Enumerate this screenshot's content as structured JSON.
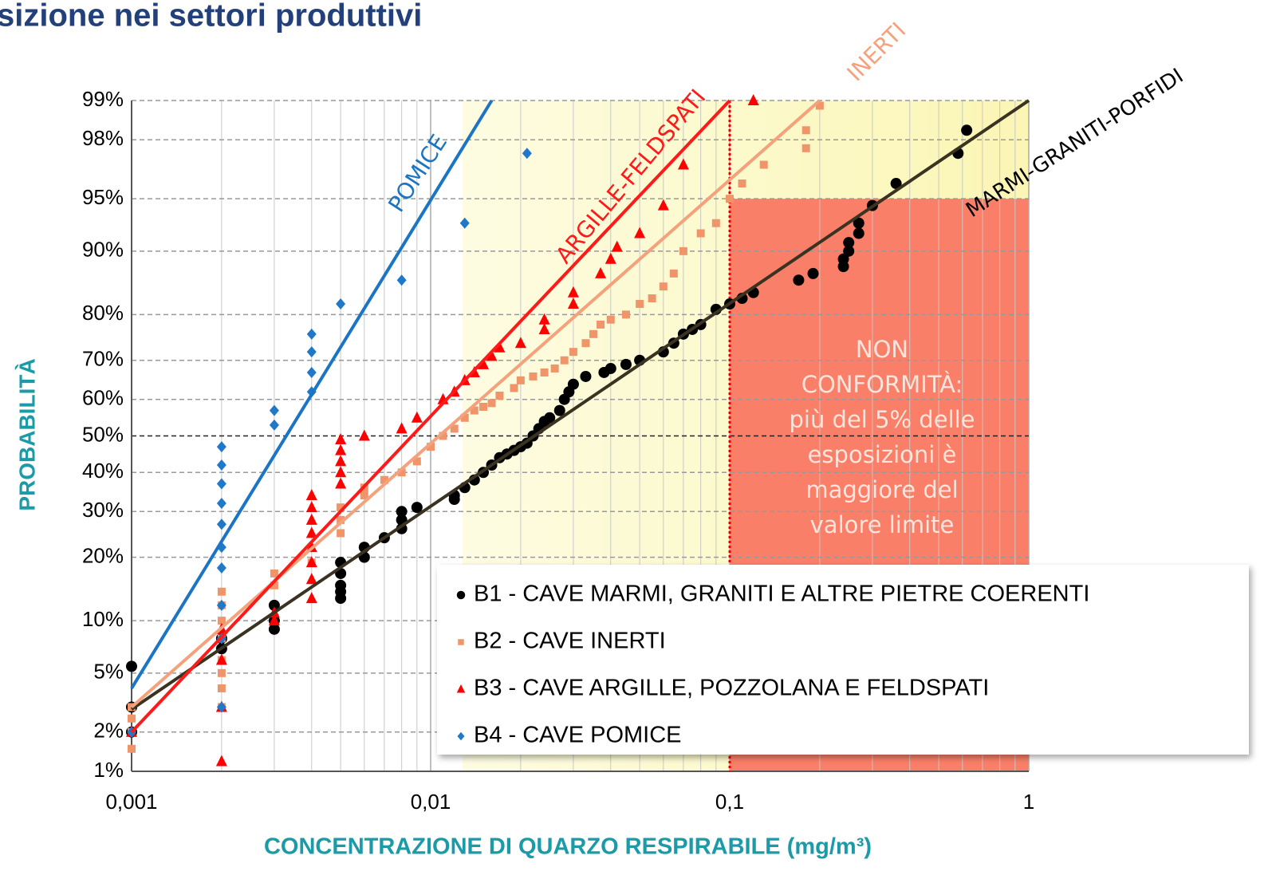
{
  "heading": "sizione nei settori produttivi",
  "chart_data": {
    "type": "scatter",
    "xlabel": "CONCENTRAZIONE DI QUARZO RESPIRABILE (mg/m³)",
    "ylabel": "PROBABILITÀ",
    "xscale": "log",
    "yscale": "probability",
    "xlim": [
      0.001,
      1
    ],
    "ylim": [
      1,
      99
    ],
    "xticks": [
      {
        "value": 0.001,
        "label": "0,001"
      },
      {
        "value": 0.01,
        "label": "0,01"
      },
      {
        "value": 0.1,
        "label": "0,1"
      },
      1
    ],
    "yticks": [
      {
        "value": 1,
        "label": "1%"
      },
      {
        "value": 2,
        "label": "2%"
      },
      {
        "value": 5,
        "label": "5%"
      },
      {
        "value": 10,
        "label": "10%"
      },
      {
        "value": 20,
        "label": "20%"
      },
      {
        "value": 30,
        "label": "30%"
      },
      {
        "value": 40,
        "label": "40%"
      },
      {
        "value": 50,
        "label": "50%"
      },
      {
        "value": 60,
        "label": "60%"
      },
      {
        "value": 70,
        "label": "70%"
      },
      {
        "value": 80,
        "label": "80%"
      },
      {
        "value": 90,
        "label": "90%"
      },
      {
        "value": 95,
        "label": "95%"
      },
      {
        "value": 98,
        "label": "98%"
      },
      {
        "value": 99,
        "label": "99%"
      }
    ],
    "grid": true,
    "legend": "lower right",
    "annotations": {
      "line_labels": [
        "POMICE",
        "ARGILLE-FELDSPATI",
        "INERTI",
        "MARMI-GRANITI-PORFIDI"
      ],
      "region": [
        "NON",
        "CONFORMITÀ:",
        "più del 5% delle",
        "esposizioni è",
        "maggiore del",
        "valore limite"
      ]
    },
    "series": [
      {
        "name": "B1 - CAVE MARMI, GRANITI E ALTRE PIETRE COERENTI",
        "color": "#000000",
        "line_color": "#3b3322",
        "marker": "circle",
        "x": [
          0.001,
          0.001,
          0.001,
          0.002,
          0.002,
          0.003,
          0.003,
          0.003,
          0.005,
          0.005,
          0.005,
          0.005,
          0.005,
          0.006,
          0.006,
          0.007,
          0.008,
          0.008,
          0.008,
          0.009,
          0.012,
          0.012,
          0.013,
          0.014,
          0.015,
          0.016,
          0.017,
          0.018,
          0.019,
          0.02,
          0.021,
          0.022,
          0.023,
          0.024,
          0.025,
          0.027,
          0.028,
          0.029,
          0.03,
          0.033,
          0.038,
          0.04,
          0.045,
          0.05,
          0.06,
          0.065,
          0.07,
          0.075,
          0.08,
          0.09,
          0.1,
          0.11,
          0.12,
          0.17,
          0.19,
          0.24,
          0.24,
          0.25,
          0.25,
          0.27,
          0.27,
          0.3,
          0.36,
          0.58,
          0.62
        ],
        "values": [
          5.5,
          3,
          2,
          7,
          8,
          12,
          10,
          9,
          19,
          17,
          15,
          14,
          13,
          22,
          20,
          24,
          26,
          28,
          30,
          31,
          34,
          33,
          36,
          38,
          40,
          42,
          44,
          45,
          46,
          47,
          48,
          50,
          52,
          54,
          55,
          57,
          60,
          62,
          64,
          66,
          67,
          68,
          69,
          70,
          72,
          74,
          76,
          77,
          78,
          81,
          82,
          83,
          84,
          86,
          87,
          88,
          89,
          90,
          91,
          92,
          93,
          94.5,
          96,
          97.5,
          98.3
        ],
        "trend_x": [
          0.001,
          1
        ],
        "trend_y": [
          2.9,
          99
        ]
      },
      {
        "name": "B2 - CAVE INERTI",
        "color": "#f0956a",
        "line_color": "#f4a27c",
        "marker": "square",
        "x": [
          0.001,
          0.001,
          0.001,
          0.001,
          0.002,
          0.002,
          0.002,
          0.002,
          0.002,
          0.002,
          0.002,
          0.002,
          0.003,
          0.003,
          0.004,
          0.005,
          0.005,
          0.005,
          0.006,
          0.006,
          0.007,
          0.008,
          0.009,
          0.01,
          0.011,
          0.012,
          0.013,
          0.014,
          0.015,
          0.016,
          0.017,
          0.019,
          0.02,
          0.022,
          0.024,
          0.026,
          0.028,
          0.03,
          0.033,
          0.035,
          0.037,
          0.04,
          0.045,
          0.05,
          0.055,
          0.06,
          0.065,
          0.07,
          0.08,
          0.09,
          0.1,
          0.11,
          0.13,
          0.18,
          0.18,
          0.2
        ],
        "values": [
          1.5,
          2,
          2.5,
          3,
          3,
          4,
          5,
          6,
          8,
          10,
          12,
          14,
          15,
          17,
          19,
          25,
          28,
          31,
          34,
          36,
          38,
          40,
          43,
          47,
          50,
          52,
          55,
          57,
          58,
          59,
          61,
          63,
          65,
          66,
          67,
          68,
          70,
          72,
          74,
          76,
          78,
          79,
          80,
          82,
          83,
          85,
          87,
          90,
          92,
          93,
          95,
          96,
          97,
          97.7,
          98.3,
          98.9
        ],
        "trend_x": [
          0.001,
          0.2
        ],
        "trend_y": [
          3,
          99
        ]
      },
      {
        "name": "B3 - CAVE ARGILLE, POZZOLANA E FELDSPATI",
        "color": "#ff0000",
        "line_color": "#ff1a1a",
        "marker": "triangle",
        "x": [
          0.001,
          0.002,
          0.002,
          0.002,
          0.002,
          0.003,
          0.003,
          0.004,
          0.004,
          0.004,
          0.004,
          0.004,
          0.004,
          0.004,
          0.004,
          0.005,
          0.005,
          0.005,
          0.005,
          0.005,
          0.006,
          0.008,
          0.009,
          0.011,
          0.012,
          0.013,
          0.014,
          0.015,
          0.016,
          0.017,
          0.02,
          0.024,
          0.024,
          0.03,
          0.03,
          0.037,
          0.04,
          0.042,
          0.05,
          0.06,
          0.07,
          0.12
        ],
        "values": [
          2,
          1.2,
          3,
          6,
          9,
          10,
          11,
          13,
          16,
          19,
          22,
          25,
          28,
          31,
          34,
          37,
          40,
          43,
          46,
          49,
          50,
          52,
          55,
          60,
          62,
          65,
          67,
          69,
          71,
          73,
          74,
          77,
          79,
          82,
          84,
          87,
          89,
          90.5,
          92,
          94.5,
          97,
          99
        ],
        "trend_x": [
          0.001,
          0.1
        ],
        "trend_y": [
          2,
          99
        ]
      },
      {
        "name": "B4 - CAVE POMICE",
        "color": "#1f78c8",
        "line_color": "#1b75c4",
        "marker": "diamond",
        "x": [
          0.001,
          0.002,
          0.002,
          0.002,
          0.002,
          0.002,
          0.002,
          0.002,
          0.002,
          0.002,
          0.002,
          0.003,
          0.003,
          0.004,
          0.004,
          0.004,
          0.004,
          0.005,
          0.008,
          0.013,
          0.021
        ],
        "values": [
          2,
          3,
          8,
          12,
          18,
          22,
          27,
          32,
          37,
          42,
          47,
          53,
          57,
          62,
          67,
          72,
          76,
          82,
          86,
          93,
          97.5
        ],
        "trend_x": [
          0.001,
          0.016
        ],
        "trend_y": [
          4,
          99
        ]
      }
    ]
  }
}
